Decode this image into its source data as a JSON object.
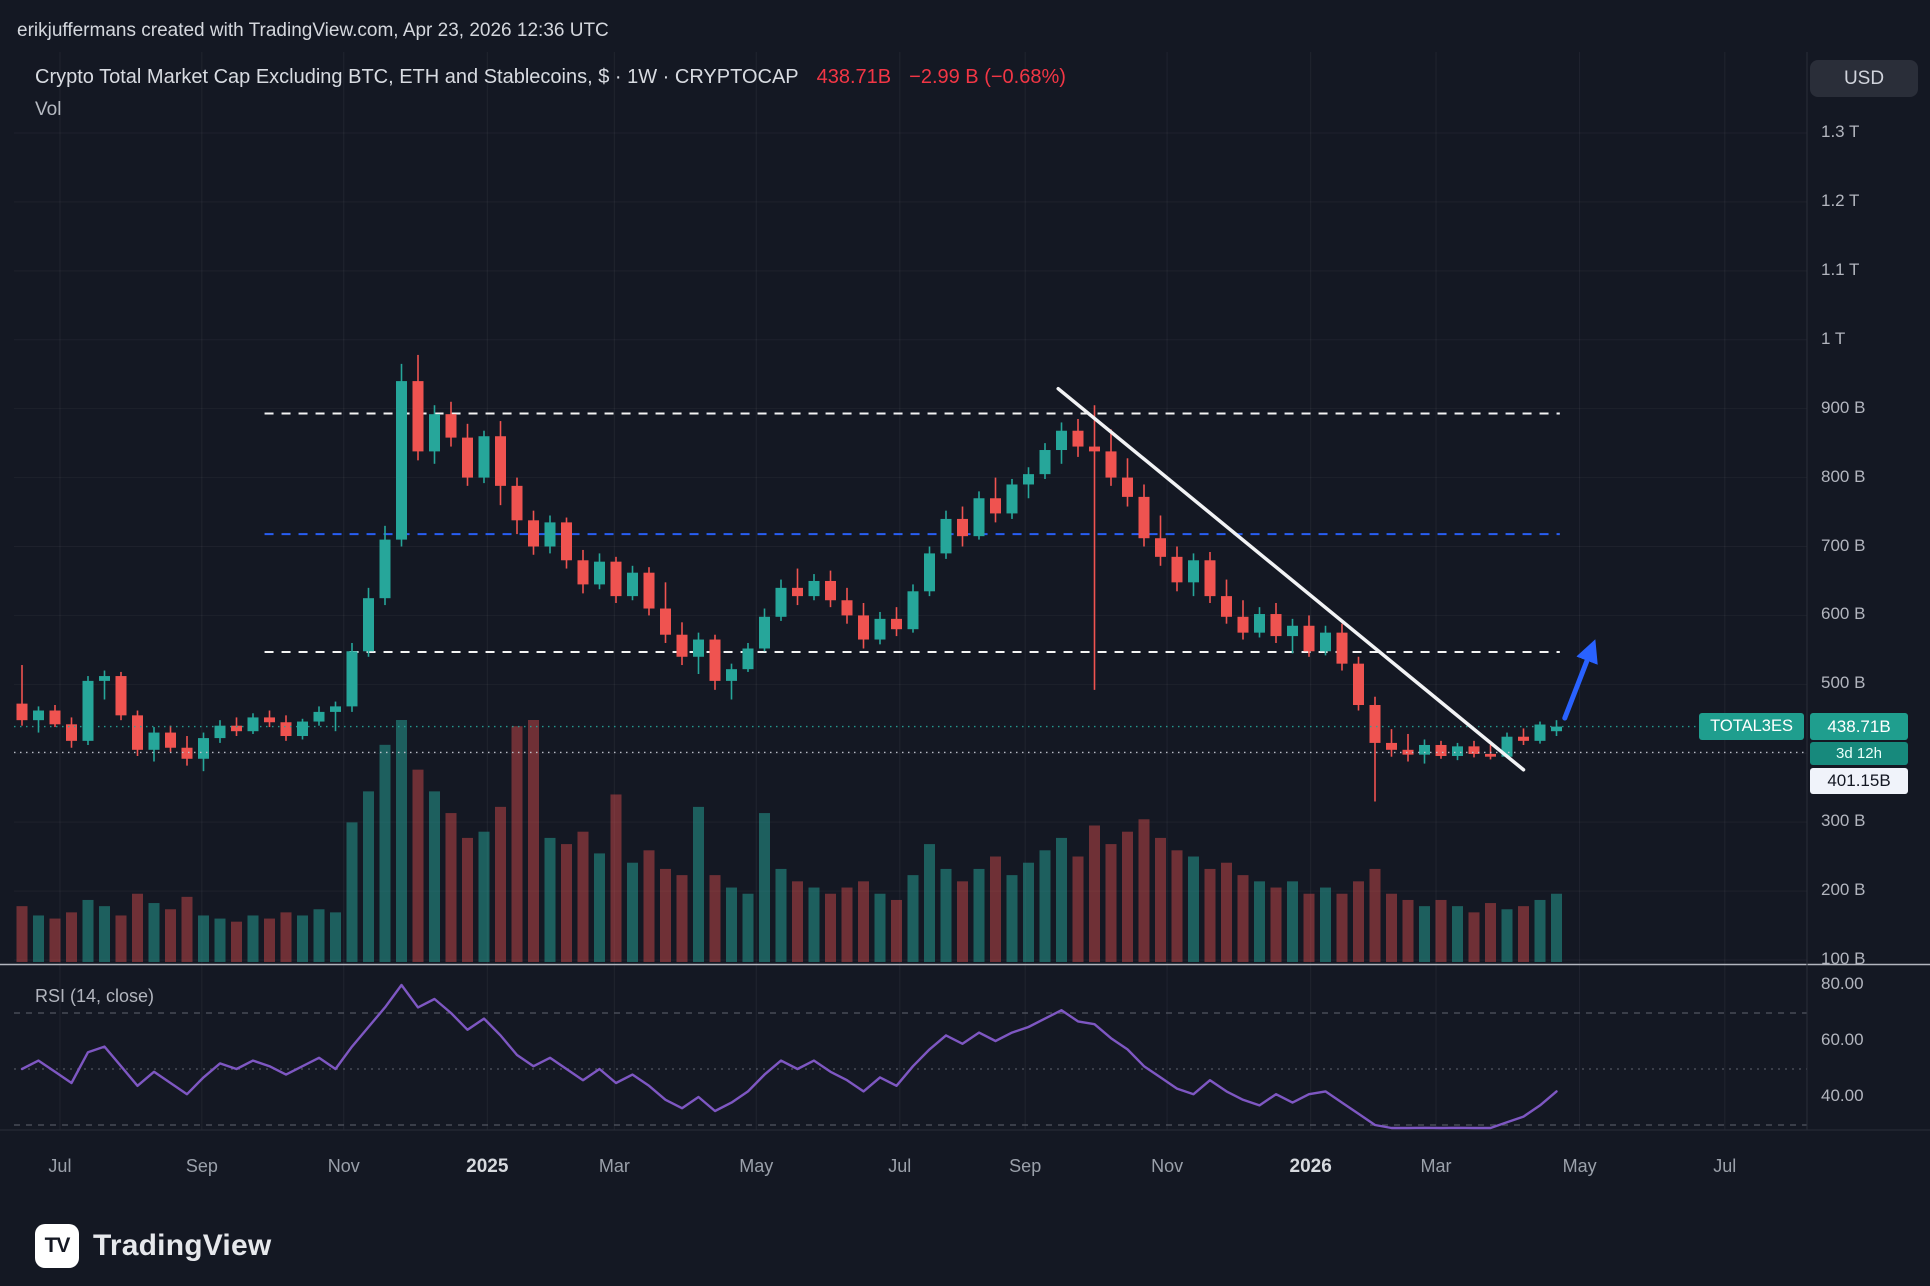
{
  "meta": {
    "attribution": "erikjuffermans created with TradingView.com, Apr 23, 2026 12:36 UTC"
  },
  "header": {
    "title": "Crypto Total Market Cap Excluding BTC, ETH and Stablecoins, $ · 1W · CRYPTOCAP",
    "price": "438.71B",
    "change": "−2.99 B (−0.68%)",
    "indicator_label": "Vol"
  },
  "axis": {
    "currency_button": "USD"
  },
  "badges": {
    "symbol_label": "TOTAL3ES",
    "last_price": "438.71B",
    "countdown": "3d 12h",
    "level_price": "401.15B"
  },
  "rsi_pane": {
    "label": "RSI (14, close)"
  },
  "logo": {
    "text": "TradingView",
    "icon": "TV"
  },
  "chart_data": {
    "type": "candlestick+volume+rsi",
    "title": "Crypto Total Market Cap Excluding BTC, ETH and Stablecoins",
    "symbol": "TOTAL3ES",
    "exchange": "CRYPTOCAP",
    "interval": "1W",
    "unit": "USD billions",
    "last": 438.71,
    "prev_close": 441.7,
    "change": -2.99,
    "change_pct": -0.68,
    "ylim": [
      100,
      1350
    ],
    "x_unit": "week index (weekly candles, ~Jul 2024 → Apr 2026)",
    "colors": {
      "up": "#26a69a",
      "down": "#ef5350",
      "volume_up": "rgba(38,166,154,0.5)",
      "volume_down": "rgba(239,83,80,0.42)",
      "rsi": "#7e57c2",
      "accent_red": "#f23645"
    },
    "candles": [
      [
        472,
        528,
        440,
        448
      ],
      [
        448,
        468,
        430,
        462
      ],
      [
        462,
        470,
        438,
        442
      ],
      [
        442,
        452,
        408,
        418
      ],
      [
        418,
        512,
        412,
        505
      ],
      [
        505,
        520,
        478,
        512
      ],
      [
        512,
        518,
        448,
        455
      ],
      [
        455,
        462,
        396,
        405
      ],
      [
        405,
        438,
        388,
        430
      ],
      [
        430,
        440,
        402,
        408
      ],
      [
        408,
        425,
        382,
        392
      ],
      [
        392,
        430,
        374,
        422
      ],
      [
        422,
        448,
        415,
        440
      ],
      [
        440,
        452,
        425,
        432
      ],
      [
        432,
        458,
        428,
        452
      ],
      [
        452,
        462,
        438,
        445
      ],
      [
        445,
        455,
        418,
        425
      ],
      [
        425,
        450,
        420,
        446
      ],
      [
        446,
        468,
        440,
        460
      ],
      [
        460,
        475,
        432,
        468
      ],
      [
        468,
        560,
        460,
        548
      ],
      [
        548,
        640,
        540,
        625
      ],
      [
        625,
        730,
        615,
        710
      ],
      [
        710,
        965,
        700,
        940
      ],
      [
        940,
        978,
        825,
        838
      ],
      [
        838,
        905,
        820,
        892
      ],
      [
        892,
        910,
        845,
        858
      ],
      [
        858,
        878,
        788,
        800
      ],
      [
        800,
        868,
        792,
        860
      ],
      [
        860,
        882,
        760,
        788
      ],
      [
        788,
        800,
        718,
        738
      ],
      [
        738,
        752,
        688,
        700
      ],
      [
        700,
        745,
        690,
        735
      ],
      [
        735,
        742,
        668,
        680
      ],
      [
        680,
        695,
        632,
        645
      ],
      [
        645,
        690,
        638,
        678
      ],
      [
        678,
        685,
        618,
        628
      ],
      [
        628,
        672,
        622,
        662
      ],
      [
        662,
        670,
        600,
        610
      ],
      [
        610,
        648,
        560,
        572
      ],
      [
        572,
        590,
        528,
        540
      ],
      [
        540,
        575,
        515,
        565
      ],
      [
        565,
        572,
        492,
        505
      ],
      [
        505,
        530,
        478,
        522
      ],
      [
        522,
        560,
        518,
        552
      ],
      [
        552,
        610,
        548,
        598
      ],
      [
        598,
        652,
        592,
        640
      ],
      [
        640,
        668,
        615,
        628
      ],
      [
        628,
        660,
        622,
        650
      ],
      [
        650,
        665,
        612,
        622
      ],
      [
        622,
        640,
        588,
        600
      ],
      [
        600,
        618,
        552,
        565
      ],
      [
        565,
        605,
        558,
        595
      ],
      [
        595,
        612,
        570,
        580
      ],
      [
        580,
        645,
        575,
        635
      ],
      [
        635,
        700,
        628,
        690
      ],
      [
        690,
        752,
        682,
        740
      ],
      [
        740,
        758,
        700,
        715
      ],
      [
        715,
        780,
        710,
        770
      ],
      [
        770,
        800,
        735,
        748
      ],
      [
        748,
        798,
        740,
        790
      ],
      [
        790,
        815,
        770,
        805
      ],
      [
        805,
        850,
        798,
        840
      ],
      [
        840,
        880,
        820,
        868
      ],
      [
        868,
        885,
        830,
        845
      ],
      [
        845,
        905,
        492,
        838
      ],
      [
        838,
        870,
        788,
        800
      ],
      [
        800,
        828,
        758,
        772
      ],
      [
        772,
        790,
        700,
        712
      ],
      [
        712,
        745,
        672,
        685
      ],
      [
        685,
        700,
        635,
        648
      ],
      [
        648,
        690,
        628,
        680
      ],
      [
        680,
        692,
        618,
        628
      ],
      [
        628,
        652,
        588,
        598
      ],
      [
        598,
        622,
        565,
        575
      ],
      [
        575,
        612,
        568,
        602
      ],
      [
        602,
        618,
        560,
        570
      ],
      [
        570,
        595,
        545,
        585
      ],
      [
        585,
        600,
        540,
        548
      ],
      [
        548,
        585,
        542,
        575
      ],
      [
        575,
        588,
        520,
        530
      ],
      [
        530,
        540,
        462,
        470
      ],
      [
        470,
        482,
        330,
        415
      ],
      [
        415,
        435,
        395,
        405
      ],
      [
        405,
        428,
        388,
        398
      ],
      [
        398,
        420,
        385,
        412
      ],
      [
        412,
        418,
        392,
        396
      ],
      [
        396,
        415,
        390,
        410
      ],
      [
        410,
        418,
        394,
        399
      ],
      [
        399,
        412,
        391,
        395
      ],
      [
        395,
        430,
        393,
        424
      ],
      [
        424,
        436,
        412,
        418
      ],
      [
        418,
        446,
        414,
        441.7
      ],
      [
        432,
        448,
        425,
        438.71
      ]
    ],
    "volume_unit": "relative (volume axis not labeled on screen)",
    "volume_rel": [
      18,
      15,
      14,
      16,
      20,
      18,
      15,
      22,
      19,
      17,
      21,
      15,
      14,
      13,
      15,
      14,
      16,
      15,
      17,
      16,
      45,
      55,
      70,
      78,
      62,
      55,
      48,
      40,
      42,
      50,
      76,
      78,
      40,
      38,
      42,
      35,
      54,
      32,
      36,
      30,
      28,
      50,
      28,
      24,
      22,
      48,
      30,
      26,
      24,
      22,
      24,
      26,
      22,
      20,
      28,
      38,
      30,
      26,
      30,
      34,
      28,
      32,
      36,
      40,
      34,
      44,
      38,
      42,
      46,
      40,
      36,
      34,
      30,
      32,
      28,
      26,
      24,
      26,
      22,
      24,
      22,
      26,
      30,
      22,
      20,
      18,
      20,
      18,
      16,
      19,
      17,
      18,
      20,
      22
    ],
    "rsi": [
      50,
      53,
      49,
      45,
      56,
      58,
      51,
      44,
      49,
      45,
      41,
      47,
      52,
      50,
      53,
      51,
      48,
      51,
      54,
      50,
      58,
      65,
      72,
      80,
      72,
      75,
      70,
      64,
      68,
      62,
      55,
      51,
      54,
      50,
      46,
      50,
      45,
      48,
      44,
      39,
      36,
      40,
      35,
      38,
      42,
      48,
      53,
      50,
      53,
      49,
      46,
      42,
      47,
      44,
      51,
      57,
      62,
      59,
      63,
      60,
      63,
      65,
      68,
      71,
      67,
      66,
      61,
      57,
      51,
      47,
      43,
      41,
      46,
      42,
      39,
      37,
      41,
      38,
      41,
      42,
      38,
      34,
      30,
      28,
      26,
      29,
      27,
      29,
      27,
      26,
      31,
      33,
      37,
      42
    ],
    "rsi_bands": [
      {
        "value": 70,
        "style": "dashed"
      },
      {
        "value": 50,
        "style": "dotted"
      },
      {
        "value": 30,
        "style": "dashed"
      }
    ],
    "price_ticks": [
      {
        "label": "1.3 T",
        "value": 1300
      },
      {
        "label": "1.2 T",
        "value": 1200
      },
      {
        "label": "1.1 T",
        "value": 1100
      },
      {
        "label": "1 T",
        "value": 1000
      },
      {
        "label": "900 B",
        "value": 900
      },
      {
        "label": "800 B",
        "value": 800
      },
      {
        "label": "700 B",
        "value": 700
      },
      {
        "label": "600 B",
        "value": 600
      },
      {
        "label": "500 B",
        "value": 500
      },
      {
        "label": "400 B",
        "value": 400
      },
      {
        "label": "300 B",
        "value": 300
      },
      {
        "label": "200 B",
        "value": 200
      },
      {
        "label": "100 B",
        "value": 100
      }
    ],
    "rsi_ticks": [
      {
        "label": "80.00",
        "value": 80
      },
      {
        "label": "60.00",
        "value": 60
      },
      {
        "label": "40.00",
        "value": 40
      }
    ],
    "time_ticks": [
      {
        "label": "Jul",
        "i": 2.3
      },
      {
        "label": "Sep",
        "i": 10.9
      },
      {
        "label": "Nov",
        "i": 19.5
      },
      {
        "label": "2025",
        "i": 28.2,
        "year": true
      },
      {
        "label": "Mar",
        "i": 35.9
      },
      {
        "label": "May",
        "i": 44.5
      },
      {
        "label": "Jul",
        "i": 53.2
      },
      {
        "label": "Sep",
        "i": 60.8
      },
      {
        "label": "Nov",
        "i": 69.4
      },
      {
        "label": "2026",
        "i": 78.1,
        "year": true
      },
      {
        "label": "Mar",
        "i": 85.7
      },
      {
        "label": "May",
        "i": 94.4
      },
      {
        "label": "Jul",
        "i": 103.2
      }
    ],
    "levels": [
      {
        "price": 893,
        "color": "#ffffff",
        "style": "dashed",
        "i1": 14.7,
        "i2": 93.2
      },
      {
        "price": 718,
        "color": "#2962ff",
        "style": "dashed",
        "i1": 14.7,
        "i2": 93.2
      },
      {
        "price": 547,
        "color": "#ffffff",
        "style": "dashed",
        "i1": 14.7,
        "i2": 93.2
      }
    ],
    "price_lines": [
      {
        "price": 438.71,
        "color": "#26a69a",
        "note": "current price dotted line"
      },
      {
        "price": 401.15,
        "color": "#c9cdd6",
        "note": "horizontal level with white badge"
      }
    ],
    "trendline": {
      "i1": 62.8,
      "p1": 929,
      "i2": 91,
      "p2": 376,
      "color": "#f2f3f5"
    },
    "arrow": {
      "i1": 93.5,
      "p1": 451,
      "i2": 95.2,
      "p2": 556,
      "color": "#2962ff"
    }
  }
}
